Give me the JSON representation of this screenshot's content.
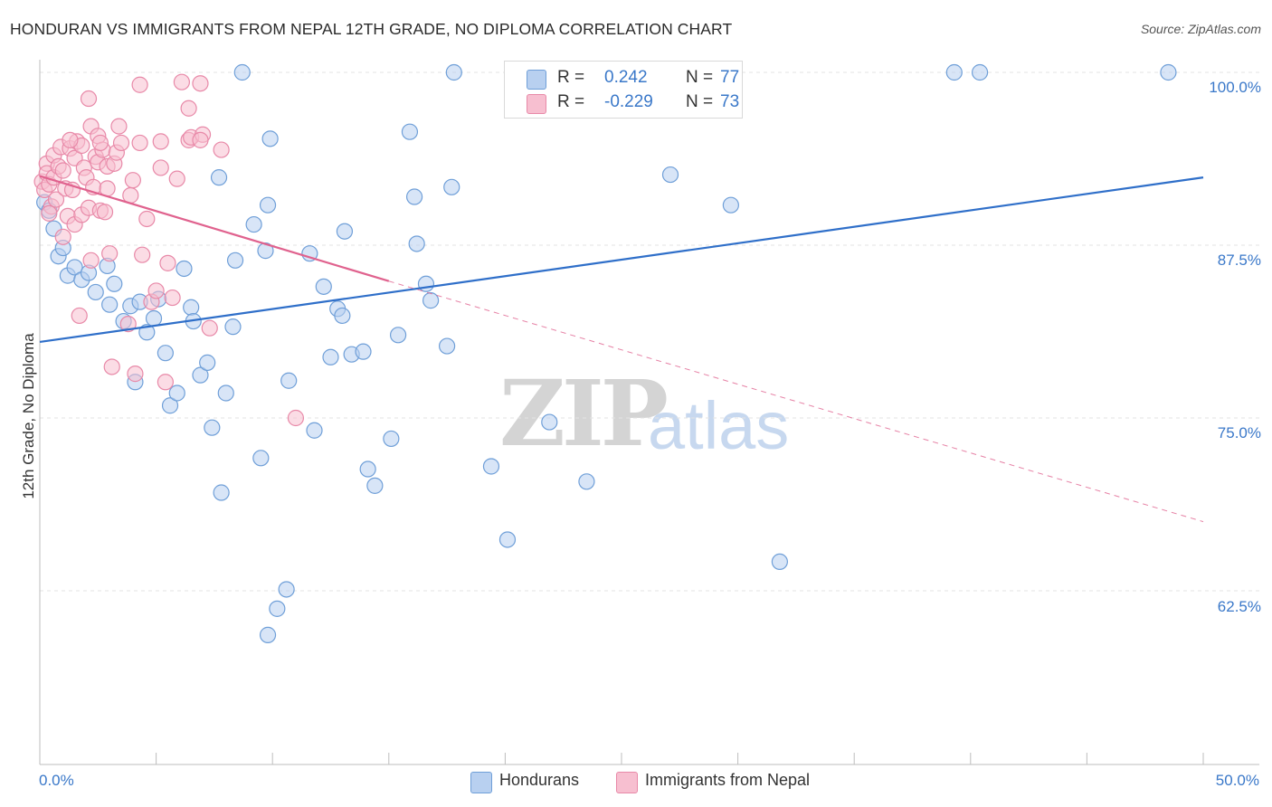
{
  "title": "HONDURAN VS IMMIGRANTS FROM NEPAL 12TH GRADE, NO DIPLOMA CORRELATION CHART",
  "source": "Source: ZipAtlas.com",
  "watermark": {
    "zip": "ZIP",
    "atlas": "atlas"
  },
  "legend": {
    "r_label": "R =",
    "n_label": "N =",
    "series": [
      {
        "r": "0.242",
        "n": "77"
      },
      {
        "r": "-0.229",
        "n": "73"
      }
    ]
  },
  "bottom_legend": [
    "Hondurans",
    "Immigrants from Nepal"
  ],
  "y_axis_label": "12th Grade, No Diploma",
  "y_ticks": [
    "100.0%",
    "87.5%",
    "75.0%",
    "62.5%"
  ],
  "x_ticks": {
    "left": "0.0%",
    "right": "50.0%"
  },
  "colors": {
    "blue_fill": "#b8d0f0",
    "blue_stroke": "#6f9fd8",
    "blue_line": "#2f6fc9",
    "pink_fill": "#f7bfd0",
    "pink_stroke": "#e889a8",
    "pink_line": "#e0628e",
    "tick_text": "#3a78c9"
  },
  "chart_data": {
    "type": "scatter",
    "title": "HONDURAN VS IMMIGRANTS FROM NEPAL 12TH GRADE, NO DIPLOMA CORRELATION CHART",
    "xlabel": "",
    "ylabel": "12th Grade, No Diploma",
    "xlim": [
      0,
      50
    ],
    "ylim": [
      55.0,
      101.5
    ],
    "y_ticks": [
      62.5,
      75.0,
      87.5,
      100.0
    ],
    "grid": true,
    "legend_position": "top-center",
    "series": [
      {
        "name": "Hondurans",
        "r": 0.242,
        "n": 77,
        "trend": {
          "x": [
            0,
            50
          ],
          "y": [
            80.5,
            92.4
          ],
          "style": "solid"
        },
        "points": [
          [
            0.2,
            90.6
          ],
          [
            0.4,
            90.0
          ],
          [
            0.6,
            88.7
          ],
          [
            0.8,
            86.7
          ],
          [
            1.0,
            87.3
          ],
          [
            1.2,
            85.3
          ],
          [
            1.5,
            85.9
          ],
          [
            1.8,
            85.0
          ],
          [
            2.1,
            85.5
          ],
          [
            2.4,
            84.1
          ],
          [
            2.9,
            86.0
          ],
          [
            3.2,
            84.7
          ],
          [
            3.0,
            83.2
          ],
          [
            3.6,
            82.0
          ],
          [
            3.9,
            83.1
          ],
          [
            4.3,
            83.4
          ],
          [
            4.1,
            77.6
          ],
          [
            4.6,
            81.2
          ],
          [
            4.9,
            82.2
          ],
          [
            5.1,
            83.6
          ],
          [
            5.4,
            79.7
          ],
          [
            5.6,
            75.9
          ],
          [
            5.9,
            76.8
          ],
          [
            6.2,
            85.8
          ],
          [
            6.5,
            83.0
          ],
          [
            6.6,
            82.0
          ],
          [
            6.9,
            78.1
          ],
          [
            7.2,
            79.0
          ],
          [
            7.4,
            74.3
          ],
          [
            7.7,
            92.4
          ],
          [
            7.8,
            69.6
          ],
          [
            8.0,
            76.8
          ],
          [
            8.3,
            81.6
          ],
          [
            8.4,
            86.4
          ],
          [
            8.7,
            100.0
          ],
          [
            9.2,
            89.0
          ],
          [
            9.5,
            72.1
          ],
          [
            9.7,
            87.1
          ],
          [
            9.8,
            90.4
          ],
          [
            9.9,
            95.2
          ],
          [
            10.7,
            77.7
          ],
          [
            11.6,
            86.9
          ],
          [
            11.8,
            74.1
          ],
          [
            12.2,
            84.5
          ],
          [
            12.5,
            79.4
          ],
          [
            12.8,
            82.9
          ],
          [
            13.0,
            82.4
          ],
          [
            13.1,
            88.5
          ],
          [
            13.4,
            79.6
          ],
          [
            13.9,
            79.8
          ],
          [
            14.1,
            71.3
          ],
          [
            14.4,
            70.1
          ],
          [
            15.1,
            73.5
          ],
          [
            15.4,
            81.0
          ],
          [
            15.9,
            95.7
          ],
          [
            16.1,
            91.0
          ],
          [
            16.2,
            87.6
          ],
          [
            16.6,
            84.7
          ],
          [
            16.8,
            83.5
          ],
          [
            17.5,
            80.2
          ],
          [
            17.7,
            91.7
          ],
          [
            17.8,
            100.0
          ],
          [
            19.4,
            71.5
          ],
          [
            20.1,
            66.2
          ],
          [
            21.9,
            74.7
          ],
          [
            22.6,
            100.0
          ],
          [
            23.5,
            70.4
          ],
          [
            25.2,
            100.0
          ],
          [
            27.1,
            92.6
          ],
          [
            29.7,
            90.4
          ],
          [
            31.8,
            64.6
          ],
          [
            39.3,
            100.0
          ],
          [
            40.4,
            100.0
          ],
          [
            48.5,
            100.0
          ],
          [
            10.6,
            62.6
          ],
          [
            10.2,
            61.2
          ],
          [
            9.8,
            59.3
          ]
        ]
      },
      {
        "name": "Immigrants from Nepal",
        "r": -0.229,
        "n": 73,
        "trend": {
          "x": [
            0,
            15
          ],
          "y": [
            92.5,
            84.9
          ],
          "style": "solid",
          "extension": {
            "x": [
              15,
              50
            ],
            "y": [
              84.9,
              67.5
            ],
            "style": "dashed"
          }
        },
        "points": [
          [
            0.1,
            92.1
          ],
          [
            0.2,
            91.5
          ],
          [
            0.3,
            93.4
          ],
          [
            0.3,
            92.7
          ],
          [
            0.4,
            91.9
          ],
          [
            0.5,
            90.3
          ],
          [
            0.6,
            92.4
          ],
          [
            0.6,
            94.0
          ],
          [
            0.7,
            90.8
          ],
          [
            0.8,
            93.2
          ],
          [
            0.9,
            94.6
          ],
          [
            1.0,
            92.9
          ],
          [
            1.0,
            88.1
          ],
          [
            1.1,
            91.6
          ],
          [
            1.2,
            89.6
          ],
          [
            1.3,
            94.5
          ],
          [
            1.4,
            91.5
          ],
          [
            1.5,
            93.8
          ],
          [
            1.5,
            89.0
          ],
          [
            1.6,
            95.0
          ],
          [
            1.7,
            82.4
          ],
          [
            1.8,
            94.7
          ],
          [
            1.8,
            89.7
          ],
          [
            1.9,
            93.1
          ],
          [
            2.0,
            92.4
          ],
          [
            2.1,
            90.2
          ],
          [
            2.2,
            86.4
          ],
          [
            2.2,
            96.1
          ],
          [
            2.3,
            91.7
          ],
          [
            2.4,
            93.9
          ],
          [
            2.5,
            93.5
          ],
          [
            2.5,
            95.4
          ],
          [
            2.6,
            90.0
          ],
          [
            2.7,
            94.4
          ],
          [
            2.8,
            89.9
          ],
          [
            2.9,
            91.6
          ],
          [
            2.9,
            93.2
          ],
          [
            3.0,
            86.9
          ],
          [
            3.1,
            78.7
          ],
          [
            3.2,
            93.4
          ],
          [
            3.3,
            94.2
          ],
          [
            3.4,
            96.1
          ],
          [
            3.5,
            94.9
          ],
          [
            3.9,
            91.1
          ],
          [
            4.0,
            92.2
          ],
          [
            4.1,
            78.2
          ],
          [
            4.3,
            94.9
          ],
          [
            4.6,
            89.4
          ],
          [
            4.8,
            83.4
          ],
          [
            5.0,
            84.2
          ],
          [
            5.2,
            93.1
          ],
          [
            5.4,
            77.6
          ],
          [
            5.5,
            86.2
          ],
          [
            5.7,
            83.7
          ],
          [
            6.1,
            99.3
          ],
          [
            6.4,
            97.4
          ],
          [
            6.4,
            95.1
          ],
          [
            6.5,
            95.3
          ],
          [
            6.9,
            99.2
          ],
          [
            7.0,
            95.5
          ],
          [
            7.3,
            81.5
          ],
          [
            7.8,
            94.4
          ],
          [
            11.0,
            75.0
          ],
          [
            4.3,
            99.1
          ],
          [
            3.8,
            81.8
          ],
          [
            2.1,
            98.1
          ],
          [
            5.2,
            95.0
          ],
          [
            1.3,
            95.1
          ],
          [
            2.6,
            94.9
          ],
          [
            0.4,
            89.8
          ],
          [
            6.9,
            95.1
          ],
          [
            5.9,
            92.3
          ],
          [
            4.4,
            86.8
          ]
        ]
      }
    ]
  }
}
